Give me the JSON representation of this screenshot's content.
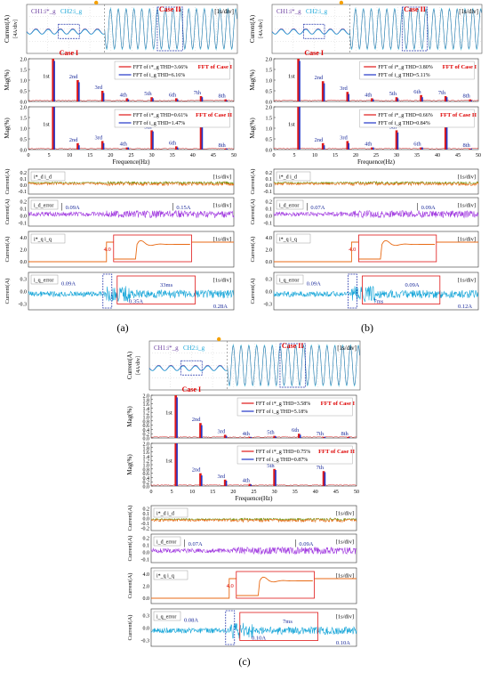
{
  "panel_labels": [
    "(a)",
    "(b)",
    "(c)"
  ],
  "chart_data": [
    {
      "id": "a",
      "type": "line",
      "oscilloscope": {
        "ylabel": "Current(A)",
        "yunit": "[4A/div]",
        "legend": [
          "CH1:i*_g",
          "CH2:i_g"
        ],
        "timebase": "[1s/div]",
        "case1_label": "Case I",
        "case2_label": "Case II"
      },
      "fft_case1": {
        "title": "FFT of Case I",
        "ylabel": "Mag(%)",
        "ylim": [
          0,
          2.0
        ],
        "yticks": [
          "2.0",
          "1.5",
          "1.0",
          "0.5",
          "0.0"
        ],
        "legend": [
          "FFT of i*_g  THD=3.66%",
          "FFT of i_g  THD=6.16%"
        ],
        "harmonic_labels": [
          "1st",
          "2nd",
          "3rd",
          "4th",
          "5th",
          "6th",
          "7th",
          "8th"
        ],
        "harmonic_freqs": [
          6,
          12,
          18,
          24,
          30,
          36,
          42,
          48
        ],
        "values_ref": [
          2.0,
          1.0,
          0.5,
          0.15,
          0.2,
          0.15,
          0.25,
          0.1
        ],
        "values_meas": [
          1.9,
          0.9,
          0.4,
          0.1,
          0.15,
          0.1,
          0.2,
          0.05
        ]
      },
      "fft_case2": {
        "title": "FFT of Case II",
        "ylabel": "Mag(%)",
        "ylim": [
          0,
          2.0
        ],
        "yticks": [
          "2.0",
          "1.5",
          "1.0",
          "0.5",
          "0.0"
        ],
        "legend": [
          "FFT of i*_g  THD=0.61%",
          "FFT of i_g  THD=1.47%"
        ],
        "xlabel": "Frequence(Hz)",
        "xticks": [
          "0",
          "5",
          "10",
          "15",
          "20",
          "25",
          "30",
          "35",
          "40",
          "45",
          "50"
        ],
        "harmonic_labels": [
          "1st",
          "2nd",
          "3rd",
          "4th",
          "5th",
          "6th",
          "7th",
          "8th"
        ],
        "harmonic_freqs": [
          6,
          12,
          18,
          24,
          30,
          36,
          42,
          48
        ],
        "values_ref": [
          2.0,
          0.3,
          0.4,
          0.1,
          0.9,
          0.15,
          1.2,
          0.05
        ],
        "values_meas": [
          2.0,
          0.2,
          0.3,
          0.1,
          0.85,
          0.1,
          1.1,
          0.05
        ]
      },
      "traces": [
        {
          "ylabel": "Current(A)",
          "legend": [
            "i*_d",
            "i_d"
          ],
          "timebase": "[1s/div]",
          "yticks": [
            "0.2",
            "0.1",
            "0.0",
            "-0.1"
          ],
          "annotations": []
        },
        {
          "ylabel": "Current(A)",
          "legend": [
            "i_d_error"
          ],
          "timebase": "[1s/div]",
          "yticks": [
            "0.2",
            "0.1",
            "0.0",
            "-0.1"
          ],
          "annotations": [
            "0.09A",
            "0.15A"
          ]
        },
        {
          "ylabel": "Current(A)",
          "legend": [
            "i*_q",
            "i_q"
          ],
          "timebase": "[1s/div]",
          "yticks": [
            "4.0",
            "2.0",
            "0.0"
          ],
          "annotations": [
            "4.0"
          ]
        },
        {
          "ylabel": "Current(A)",
          "legend": [
            "i_q_error"
          ],
          "timebase": "[1s/div]",
          "yticks": [
            "0.3",
            "0.0",
            "-0.3"
          ],
          "annotations": [
            "0.09A",
            "33ms",
            "0.35A",
            "0.28A"
          ]
        }
      ]
    },
    {
      "id": "b",
      "type": "line",
      "oscilloscope": {
        "ylabel": "Current(A)",
        "yunit": "[4A/div]",
        "legend": [
          "CH1:i*_g",
          "CH2:i_g"
        ],
        "timebase": "[1s/div]",
        "case1_label": "Case I",
        "case2_label": "Case II"
      },
      "fft_case1": {
        "title": "FFT of Case I",
        "ylabel": "Mag(%)",
        "ylim": [
          0,
          2.0
        ],
        "yticks": [
          "2.0",
          "1.5",
          "1.0",
          "0.5",
          "0.0"
        ],
        "legend": [
          "FFT of i*_g  THD=3.80%",
          "FFT of i_g  THD=5.11%"
        ],
        "harmonic_labels": [
          "1st",
          "2nd",
          "3rd",
          "4th",
          "5th",
          "6th",
          "7th",
          "8th"
        ],
        "harmonic_freqs": [
          6,
          12,
          18,
          24,
          30,
          36,
          42,
          48
        ],
        "values_ref": [
          2.0,
          0.95,
          0.45,
          0.15,
          0.2,
          0.3,
          0.25,
          0.1
        ],
        "values_meas": [
          1.9,
          0.85,
          0.35,
          0.1,
          0.15,
          0.2,
          0.2,
          0.05
        ]
      },
      "fft_case2": {
        "title": "FFT of Case II",
        "ylabel": "Mag(%)",
        "ylim": [
          0,
          2.0
        ],
        "yticks": [
          "2.0",
          "1.5",
          "1.0",
          "0.5",
          "0.0"
        ],
        "legend": [
          "FFT of i*_g  THD=0.66%",
          "FFT of i_g  THD=0.84%"
        ],
        "xlabel": "Frequence(Hz)",
        "xticks": [
          "0",
          "5",
          "10",
          "15",
          "20",
          "25",
          "30",
          "35",
          "40",
          "45",
          "50"
        ],
        "harmonic_labels": [
          "1st",
          "2nd",
          "3rd",
          "4th",
          "5th",
          "6th",
          "7th",
          "8th"
        ],
        "harmonic_freqs": [
          6,
          12,
          18,
          24,
          30,
          36,
          42,
          48
        ],
        "values_ref": [
          2.0,
          0.3,
          0.4,
          0.1,
          0.9,
          0.1,
          1.2,
          0.05
        ],
        "values_meas": [
          2.0,
          0.2,
          0.3,
          0.1,
          0.8,
          0.1,
          1.1,
          0.05
        ]
      },
      "traces": [
        {
          "ylabel": "Current(A)",
          "legend": [
            "i*_d",
            "i_d"
          ],
          "timebase": "[1s/div]",
          "yticks": [
            "0.2",
            "0.1",
            "0.0",
            "-0.1"
          ],
          "annotations": []
        },
        {
          "ylabel": "Current(A)",
          "legend": [
            "i_d_error"
          ],
          "timebase": "[1s/div]",
          "yticks": [
            "0.2",
            "0.1",
            "0.0",
            "-0.1"
          ],
          "annotations": [
            "0.07A",
            "0.09A"
          ]
        },
        {
          "ylabel": "Current(A)",
          "legend": [
            "i*_q",
            "i_q"
          ],
          "timebase": "[1s/div]",
          "yticks": [
            "4.0",
            "2.0",
            "0.0"
          ],
          "annotations": [
            "4.0"
          ]
        },
        {
          "ylabel": "Current(A)",
          "legend": [
            "i_q_error"
          ],
          "timebase": "[1s/div]",
          "yticks": [
            "0.3",
            "0.0",
            "-0.3"
          ],
          "annotations": [
            "0.09A",
            "0.09A",
            "7ms",
            "0.12A"
          ]
        }
      ]
    },
    {
      "id": "c",
      "type": "line",
      "oscilloscope": {
        "ylabel": "Current(A)",
        "yunit": "[4A/div]",
        "legend": [
          "CH1:i*_g",
          "CH2:i_g"
        ],
        "timebase": "[1s/div]",
        "case1_label": "Case I",
        "case2_label": "Case II"
      },
      "fft_case1": {
        "title": "FFT of Case I",
        "ylabel": "Mag(%)",
        "ylim": [
          0,
          2.0
        ],
        "yticks": [
          "2.0",
          "1.8",
          "1.6",
          "1.4",
          "1.2",
          "1.0",
          "0.8",
          "0.6",
          "0.4",
          "0.2",
          "0.0"
        ],
        "legend": [
          "FFT of i*_g  THD=3.58%",
          "FFT of i_g  THD=5.18%"
        ],
        "harmonic_labels": [
          "1st",
          "2nd",
          "3rd",
          "4th",
          "5th",
          "6th",
          "7th",
          "8th"
        ],
        "harmonic_freqs": [
          6,
          12,
          18,
          24,
          30,
          36,
          42,
          48
        ],
        "values_ref": [
          2.0,
          0.7,
          0.15,
          0.05,
          0.1,
          0.2,
          0.05,
          0.05
        ],
        "values_meas": [
          1.9,
          0.6,
          0.1,
          0.05,
          0.08,
          0.15,
          0.05,
          0.03
        ]
      },
      "fft_case2": {
        "title": "FFT of Case II",
        "ylabel": "Mag(%)",
        "ylim": [
          0,
          2.0
        ],
        "yticks": [
          "2.0",
          "1.8",
          "1.6",
          "1.4",
          "1.2",
          "1.0",
          "0.8",
          "0.6",
          "0.4",
          "0.2",
          "0.0"
        ],
        "legend": [
          "FFT of i*_g  THD=0.75%",
          "FFT of i_g  THD=0.87%"
        ],
        "xlabel": "Frequence(Hz)",
        "xticks": [
          "0",
          "5",
          "10",
          "15",
          "20",
          "25",
          "30",
          "35",
          "40",
          "45",
          "50"
        ],
        "harmonic_labels": [
          "1st",
          "2nd",
          "3rd",
          "4th",
          "5th",
          "7th"
        ],
        "harmonic_freqs": [
          6,
          12,
          18,
          24,
          30,
          42
        ],
        "values_ref": [
          2.0,
          0.6,
          0.3,
          0.1,
          0.8,
          0.7
        ],
        "values_meas": [
          2.0,
          0.5,
          0.25,
          0.08,
          0.75,
          0.65
        ]
      },
      "traces": [
        {
          "ylabel": "Current(A)",
          "legend": [
            "i*_d",
            "i_d"
          ],
          "timebase": "[1s/div]",
          "yticks": [
            "0.2",
            "0.1",
            "0.0",
            "-0.1",
            "-0.2"
          ],
          "annotations": []
        },
        {
          "ylabel": "Current(A)",
          "legend": [
            "i_d_error"
          ],
          "timebase": "[1s/div]",
          "yticks": [
            "0.2",
            "0.1",
            "0.0",
            "-0.1"
          ],
          "annotations": [
            "0.07A",
            "0.09A"
          ]
        },
        {
          "ylabel": "Current(A)",
          "legend": [
            "i*_q",
            "i_q"
          ],
          "timebase": "[1s/div]",
          "yticks": [
            "4.0",
            "2.0",
            "0.0"
          ],
          "annotations": [
            "4.0"
          ]
        },
        {
          "ylabel": "Current(A)",
          "legend": [
            "i_q_error"
          ],
          "timebase": "[1s/div]",
          "yticks": [
            "0.3",
            "0.0",
            "-0.3"
          ],
          "annotations": [
            "0.08A",
            "7ms",
            "0.10A",
            "0.10A"
          ]
        }
      ]
    }
  ]
}
